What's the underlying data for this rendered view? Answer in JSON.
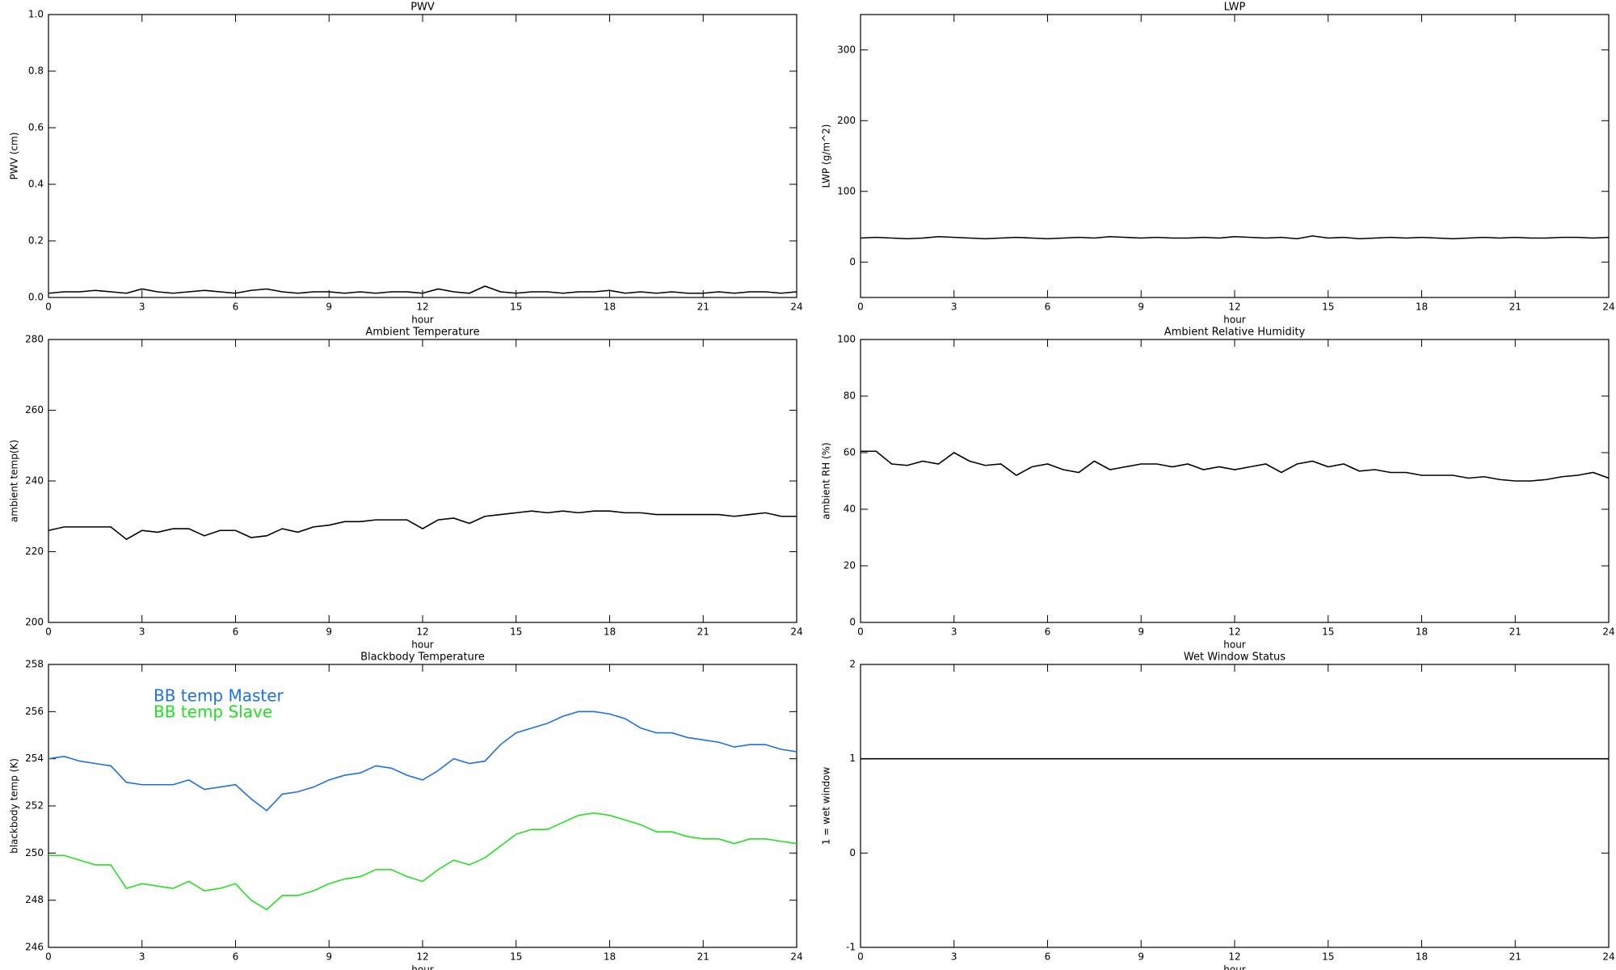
{
  "chart_data": [
    {
      "type": "line",
      "title": "PWV",
      "ylabel": "PWV (cm)",
      "xlabel": "hour",
      "x": [
        0,
        0.5,
        1,
        1.5,
        2,
        2.5,
        3,
        3.5,
        4,
        4.5,
        5,
        5.5,
        6,
        6.5,
        7,
        7.5,
        8,
        8.5,
        9,
        9.5,
        10,
        10.5,
        11,
        11.5,
        12,
        12.5,
        13,
        13.5,
        14,
        14.5,
        15,
        15.5,
        16,
        16.5,
        17,
        17.5,
        18,
        18.5,
        19,
        19.5,
        20,
        20.5,
        21,
        21.5,
        22,
        22.5,
        23,
        23.5,
        24
      ],
      "values": [
        0.015,
        0.02,
        0.02,
        0.025,
        0.02,
        0.015,
        0.03,
        0.02,
        0.015,
        0.02,
        0.025,
        0.02,
        0.015,
        0.025,
        0.03,
        0.02,
        0.015,
        0.02,
        0.02,
        0.015,
        0.02,
        0.015,
        0.02,
        0.02,
        0.015,
        0.03,
        0.02,
        0.015,
        0.04,
        0.02,
        0.015,
        0.02,
        0.02,
        0.015,
        0.02,
        0.02,
        0.025,
        0.015,
        0.02,
        0.015,
        0.02,
        0.015,
        0.015,
        0.02,
        0.015,
        0.02,
        0.02,
        0.015,
        0.02
      ],
      "color": "#000000",
      "xlim": [
        0,
        24
      ],
      "xticks": [
        0,
        3,
        6,
        9,
        12,
        15,
        18,
        21,
        24
      ],
      "ylim": [
        0,
        1
      ],
      "yticks": [
        {
          "value": 0,
          "label": "0.0"
        },
        0.2,
        0.4,
        0.6,
        0.8,
        {
          "value": 1,
          "label": "1.0"
        }
      ]
    },
    {
      "type": "line",
      "title": "LWP",
      "ylabel": "LWP (g/m^2)",
      "xlabel": "hour",
      "x": [
        0,
        0.5,
        1,
        1.5,
        2,
        2.5,
        3,
        3.5,
        4,
        4.5,
        5,
        5.5,
        6,
        6.5,
        7,
        7.5,
        8,
        8.5,
        9,
        9.5,
        10,
        10.5,
        11,
        11.5,
        12,
        12.5,
        13,
        13.5,
        14,
        14.5,
        15,
        15.5,
        16,
        16.5,
        17,
        17.5,
        18,
        18.5,
        19,
        19.5,
        20,
        20.5,
        21,
        21.5,
        22,
        22.5,
        23,
        23.5,
        24
      ],
      "values": [
        34,
        35,
        34,
        33,
        34,
        36,
        35,
        34,
        33,
        34,
        35,
        34,
        33,
        34,
        35,
        34,
        36,
        35,
        34,
        35,
        34,
        34,
        35,
        34,
        36,
        35,
        34,
        35,
        33,
        37,
        34,
        35,
        33,
        34,
        35,
        34,
        35,
        34,
        33,
        34,
        35,
        34,
        35,
        34,
        34,
        35,
        35,
        34,
        35
      ],
      "color": "#000000",
      "xlim": [
        0,
        24
      ],
      "xticks": [
        0,
        3,
        6,
        9,
        12,
        15,
        18,
        21,
        24
      ],
      "ylim": [
        -50,
        350
      ],
      "yticks": [
        0,
        100,
        200,
        300
      ]
    },
    {
      "type": "line",
      "title": "Ambient Temperature",
      "ylabel": "ambient temp(K)",
      "xlabel": "hour",
      "x": [
        0,
        0.5,
        1,
        1.5,
        2,
        2.5,
        3,
        3.5,
        4,
        4.5,
        5,
        5.5,
        6,
        6.5,
        7,
        7.5,
        8,
        8.5,
        9,
        9.5,
        10,
        10.5,
        11,
        11.5,
        12,
        12.5,
        13,
        13.5,
        14,
        14.5,
        15,
        15.5,
        16,
        16.5,
        17,
        17.5,
        18,
        18.5,
        19,
        19.5,
        20,
        20.5,
        21,
        21.5,
        22,
        22.5,
        23,
        23.5,
        24
      ],
      "values": [
        226,
        227,
        227,
        227,
        227,
        223.5,
        226,
        225.5,
        226.5,
        226.5,
        224.5,
        226,
        226,
        224,
        224.5,
        226.5,
        225.5,
        227,
        227.5,
        228.5,
        228.5,
        229,
        229,
        229,
        226.5,
        229,
        229.5,
        228,
        230,
        230.5,
        231,
        231.5,
        231,
        231.5,
        231,
        231.5,
        231.5,
        231,
        231,
        230.5,
        230.5,
        230.5,
        230.5,
        230.5,
        230,
        230.5,
        231,
        230,
        230
      ],
      "color": "#000000",
      "xlim": [
        0,
        24
      ],
      "xticks": [
        0,
        3,
        6,
        9,
        12,
        15,
        18,
        21,
        24
      ],
      "ylim": [
        200,
        280
      ],
      "yticks": [
        200,
        220,
        240,
        260,
        280
      ]
    },
    {
      "type": "line",
      "title": "Ambient Relative Humidity",
      "ylabel": "ambient RH (%)",
      "xlabel": "hour",
      "x": [
        0,
        0.5,
        1,
        1.5,
        2,
        2.5,
        3,
        3.5,
        4,
        4.5,
        5,
        5.5,
        6,
        6.5,
        7,
        7.5,
        8,
        8.5,
        9,
        9.5,
        10,
        10.5,
        11,
        11.5,
        12,
        12.5,
        13,
        13.5,
        14,
        14.5,
        15,
        15.5,
        16,
        16.5,
        17,
        17.5,
        18,
        18.5,
        19,
        19.5,
        20,
        20.5,
        21,
        21.5,
        22,
        22.5,
        23,
        23.5,
        24
      ],
      "values": [
        60.5,
        60.5,
        56,
        55.5,
        57,
        56,
        60,
        57,
        55.5,
        56,
        52,
        55,
        56,
        54,
        53,
        57,
        54,
        55,
        56,
        56,
        55,
        56,
        54,
        55,
        54,
        55,
        56,
        53,
        56,
        57,
        55,
        56,
        53.5,
        54,
        53,
        53,
        52,
        52,
        52,
        51,
        51.5,
        50.5,
        50,
        50,
        50.5,
        51.5,
        52,
        53,
        51
      ],
      "color": "#000000",
      "xlim": [
        0,
        24
      ],
      "xticks": [
        0,
        3,
        6,
        9,
        12,
        15,
        18,
        21,
        24
      ],
      "ylim": [
        0,
        100
      ],
      "yticks": [
        0,
        20,
        40,
        60,
        80,
        100
      ]
    },
    {
      "type": "line",
      "title": "Blackbody Temperature",
      "ylabel": "blackbody temp (K)",
      "xlabel": "hour",
      "x": [
        0,
        0.5,
        1,
        1.5,
        2,
        2.5,
        3,
        3.5,
        4,
        4.5,
        5,
        5.5,
        6,
        6.5,
        7,
        7.5,
        8,
        8.5,
        9,
        9.5,
        10,
        10.5,
        11,
        11.5,
        12,
        12.5,
        13,
        13.5,
        14,
        14.5,
        15,
        15.5,
        16,
        16.5,
        17,
        17.5,
        18,
        18.5,
        19,
        19.5,
        20,
        20.5,
        21,
        21.5,
        22,
        22.5,
        23,
        23.5,
        24
      ],
      "series": [
        {
          "name": "BB temp Master",
          "color": "#1f6fe8",
          "values": [
            254.0,
            254.1,
            253.9,
            253.8,
            253.7,
            253.0,
            252.9,
            252.9,
            252.9,
            253.1,
            252.7,
            252.8,
            252.9,
            252.3,
            251.8,
            252.5,
            252.6,
            252.8,
            253.1,
            253.3,
            253.4,
            253.7,
            253.6,
            253.3,
            253.1,
            253.5,
            254.0,
            253.8,
            253.9,
            254.6,
            255.1,
            255.3,
            255.5,
            255.8,
            256.0,
            256.0,
            255.9,
            255.7,
            255.3,
            255.1,
            255.1,
            254.9,
            254.8,
            254.7,
            254.5,
            254.6,
            254.6,
            254.4,
            254.3
          ]
        },
        {
          "name": "BB temp Slave",
          "color": "#22e022",
          "values": [
            249.9,
            249.9,
            249.7,
            249.5,
            249.5,
            248.5,
            248.7,
            248.6,
            248.5,
            248.8,
            248.4,
            248.5,
            248.7,
            248.0,
            247.6,
            248.2,
            248.2,
            248.4,
            248.7,
            248.9,
            249.0,
            249.3,
            249.3,
            249.0,
            248.8,
            249.3,
            249.7,
            249.5,
            249.8,
            250.3,
            250.8,
            251.0,
            251.0,
            251.3,
            251.6,
            251.7,
            251.6,
            251.4,
            251.2,
            250.9,
            250.9,
            250.7,
            250.6,
            250.6,
            250.4,
            250.6,
            250.6,
            250.5,
            250.4
          ]
        }
      ],
      "legend": "upper left",
      "xlim": [
        0,
        24
      ],
      "xticks": [
        0,
        3,
        6,
        9,
        12,
        15,
        18,
        21,
        24
      ],
      "ylim": [
        246,
        258
      ],
      "yticks": [
        246,
        248,
        250,
        252,
        254,
        256,
        258
      ]
    },
    {
      "type": "line",
      "title": "Wet Window Status",
      "ylabel": "1 = wet window",
      "xlabel": "hour",
      "x": [
        0,
        24
      ],
      "values": [
        1,
        1
      ],
      "color": "#000000",
      "xlim": [
        0,
        24
      ],
      "xticks": [
        0,
        3,
        6,
        9,
        12,
        15,
        18,
        21,
        24
      ],
      "ylim": [
        -1,
        2
      ],
      "yticks": [
        -1,
        0,
        1,
        2
      ]
    }
  ]
}
